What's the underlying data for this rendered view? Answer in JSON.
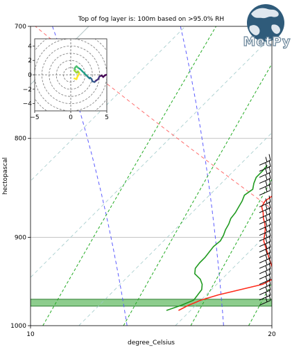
{
  "chart_data": {
    "type": "line",
    "title": "Top of fog layer is: 100m based on >95.0% RH",
    "xlabel": "degree_Celsius",
    "ylabel": "hectopascal",
    "xlim": [
      10,
      20
    ],
    "ylim": [
      1000,
      700
    ],
    "y_scale": "log",
    "x_ticks": [
      10,
      20
    ],
    "y_ticks": [
      700,
      800,
      900,
      1000
    ],
    "grid": true,
    "colors": {
      "temperature": "#ff2a1a",
      "dewpoint": "#1f9a1f",
      "dry_adiabat": "#ff6f6f",
      "moist_adiabat": "#5b5bff",
      "mixing_ratio": "#22aa22",
      "isotherm": "#9fc9c9",
      "grid": "#b0b0b0",
      "fog_layer": "#5cb85c",
      "barb": "#000000",
      "hodograph_rings": "#777777"
    },
    "series": [
      {
        "key": "temperature",
        "style": "solid",
        "points": [
          [
            13.8,
            826
          ],
          [
            14.1,
            832
          ],
          [
            14.35,
            838
          ],
          [
            14.5,
            844
          ],
          [
            14.6,
            850
          ],
          [
            14.65,
            856
          ],
          [
            14.55,
            862
          ],
          [
            14.65,
            868
          ],
          [
            14.95,
            874
          ],
          [
            15.2,
            880
          ],
          [
            15.5,
            886
          ],
          [
            15.75,
            892
          ],
          [
            15.95,
            898
          ],
          [
            16.15,
            904
          ],
          [
            16.45,
            910
          ],
          [
            16.75,
            916
          ],
          [
            17.05,
            922
          ],
          [
            17.35,
            928
          ],
          [
            17.65,
            934
          ],
          [
            17.95,
            940
          ],
          [
            18.1,
            946
          ],
          [
            17.9,
            952
          ],
          [
            17.2,
            958
          ],
          [
            16.5,
            964
          ],
          [
            16.0,
            970
          ],
          [
            15.7,
            976
          ],
          [
            15.5,
            982
          ]
        ]
      },
      {
        "key": "dewpoint",
        "style": "solid",
        "points": [
          [
            13.15,
            826
          ],
          [
            13.2,
            832
          ],
          [
            13.2,
            838
          ],
          [
            13.35,
            844
          ],
          [
            13.55,
            850
          ],
          [
            13.45,
            856
          ],
          [
            13.6,
            862
          ],
          [
            13.7,
            868
          ],
          [
            13.8,
            874
          ],
          [
            13.85,
            880
          ],
          [
            14.0,
            886
          ],
          [
            14.1,
            892
          ],
          [
            14.25,
            898
          ],
          [
            14.35,
            904
          ],
          [
            14.3,
            910
          ],
          [
            14.35,
            916
          ],
          [
            14.4,
            922
          ],
          [
            14.4,
            928
          ],
          [
            14.45,
            934
          ],
          [
            14.65,
            940
          ],
          [
            15.1,
            946
          ],
          [
            15.4,
            952
          ],
          [
            15.6,
            958
          ],
          [
            15.65,
            964
          ],
          [
            15.7,
            970
          ],
          [
            15.4,
            976
          ],
          [
            15.0,
            982
          ]
        ]
      }
    ],
    "dry_adiabats_K": [
      300,
      310,
      320,
      330
    ],
    "moist_adiabats_C": [
      10,
      14,
      18,
      22
    ],
    "mixing_ratios_gkg": [
      8,
      10,
      12,
      14,
      16
    ],
    "isotherms_C": [
      0,
      4,
      8,
      12,
      16,
      20,
      24
    ],
    "fog_layer_hPa": [
      969,
      977
    ],
    "wind_barbs": {
      "pressures": [
        826,
        832,
        838,
        844,
        850,
        856,
        868,
        874,
        880,
        886,
        892,
        898,
        904,
        910,
        916,
        922,
        928,
        934,
        940,
        946,
        952,
        958,
        964,
        970,
        976
      ]
    },
    "hodograph": {
      "xlim": [
        -5,
        5
      ],
      "ylim": [
        -5,
        5
      ],
      "x_ticks": [
        -5,
        0,
        5
      ],
      "y_ticks": [
        -4,
        -2,
        0,
        2,
        4
      ],
      "ring_spacing": 1,
      "trace": [
        [
          4.9,
          0.0
        ],
        [
          4.7,
          -0.1
        ],
        [
          4.5,
          -0.3
        ],
        [
          4.3,
          -0.1
        ],
        [
          4.0,
          -0.2
        ],
        [
          3.8,
          -0.6
        ],
        [
          3.5,
          -0.8
        ],
        [
          3.3,
          -1.0
        ],
        [
          3.0,
          -0.9
        ],
        [
          2.9,
          -0.6
        ],
        [
          2.7,
          -0.4
        ],
        [
          2.6,
          -0.5
        ],
        [
          2.4,
          -0.3
        ],
        [
          2.2,
          -0.1
        ],
        [
          1.9,
          0.2
        ],
        [
          1.6,
          0.5
        ],
        [
          1.3,
          0.8
        ],
        [
          1.0,
          1.0
        ],
        [
          0.8,
          1.2
        ],
        [
          0.6,
          1.0
        ],
        [
          0.5,
          0.6
        ],
        [
          0.8,
          0.3
        ],
        [
          1.0,
          0.5
        ],
        [
          1.2,
          0.2
        ],
        [
          0.9,
          -0.3
        ],
        [
          0.8,
          -0.6
        ],
        [
          0.5,
          -0.5
        ]
      ]
    }
  },
  "logo": {
    "text": "MetPy",
    "globe_color": "#2f5b7a",
    "land_color": "#dfe7ee"
  }
}
